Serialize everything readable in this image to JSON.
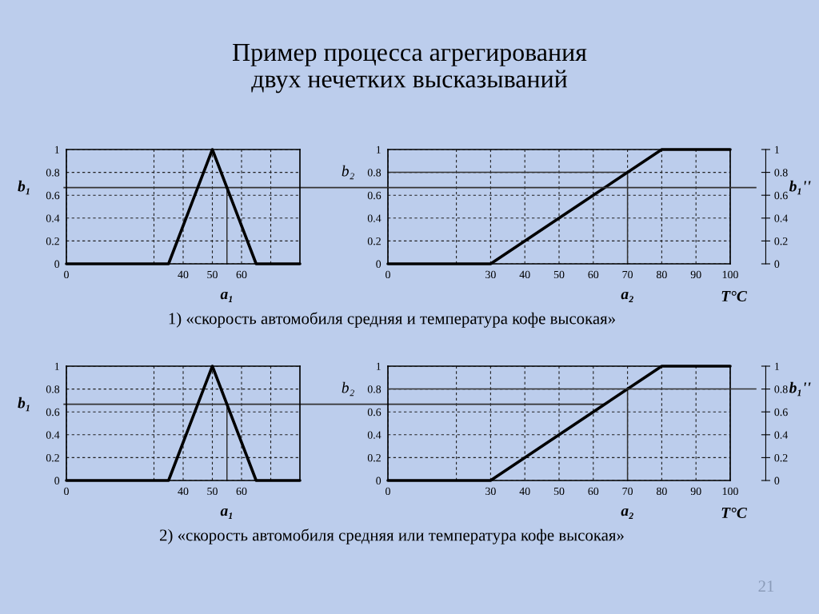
{
  "chart_data": [
    {
      "type": "line",
      "title": "Пример процесса агрегирования\nдвух нечетких высказываний",
      "xlim": [
        0,
        80
      ],
      "ylim": [
        0,
        1
      ],
      "xticks": [
        0,
        {
          "value": 30,
          "label": null
        },
        40,
        50,
        60,
        {
          "value": 70,
          "label": null
        }
      ],
      "yticks": [
        0,
        0.2,
        0.4,
        0.6,
        0.8,
        1
      ],
      "grid": true,
      "series": [
        {
          "color": "#000000",
          "x": [
            0,
            35,
            50,
            65,
            80
          ],
          "values": [
            0,
            0,
            1,
            0,
            0
          ]
        }
      ],
      "ref_lines": [
        {
          "axis": "y",
          "value": 0.667,
          "label": "b₁",
          "color": "#333333"
        },
        {
          "axis": "x",
          "value": 55,
          "label": "a₁",
          "color": "#333333"
        }
      ],
      "annotations": [
        "1) «скорость автомобиля средняя и температура кофе высокая»"
      ]
    },
    {
      "type": "line",
      "xlabel": "T°C",
      "ylabel": "b₂",
      "xlim": [
        0,
        100
      ],
      "ylim": [
        0,
        1
      ],
      "xticks": [
        0,
        {
          "value": 20,
          "label": null
        },
        30,
        40,
        50,
        60,
        70,
        80,
        90,
        100
      ],
      "yticks": [
        0,
        0.2,
        0.4,
        0.6,
        0.8,
        1
      ],
      "y2lim": [
        0,
        1
      ],
      "y2ticks": [
        0,
        0.2,
        0.4,
        0.6,
        0.8,
        1
      ],
      "grid": true,
      "series": [
        {
          "color": "#000000",
          "x": [
            0,
            30,
            80,
            100
          ],
          "values": [
            0,
            0,
            1,
            1
          ]
        },
        {
          "color": "#333333",
          "x": [
            0,
            70
          ],
          "values": [
            0.8,
            0.8
          ]
        }
      ],
      "ref_lines": [
        {
          "axis": "y2",
          "value": 0.667,
          "label": "b₁''",
          "color": "#333333"
        },
        {
          "axis": "x",
          "value": 70,
          "label": "a₂",
          "color": "#333333"
        }
      ]
    },
    {
      "type": "line",
      "xlim": [
        0,
        80
      ],
      "ylim": [
        0,
        1
      ],
      "xticks": [
        0,
        {
          "value": 30,
          "label": null
        },
        40,
        50,
        60,
        {
          "value": 70,
          "label": null
        }
      ],
      "yticks": [
        0,
        0.2,
        0.4,
        0.6,
        0.8,
        1
      ],
      "grid": true,
      "series": [
        {
          "color": "#000000",
          "x": [
            0,
            35,
            50,
            65,
            80
          ],
          "values": [
            0,
            0,
            1,
            0,
            0
          ]
        }
      ],
      "ref_lines": [
        {
          "axis": "y",
          "value": 0.667,
          "label": "b₁",
          "color": "#333333"
        },
        {
          "axis": "x",
          "value": 55,
          "label": "a₁",
          "color": "#333333"
        }
      ],
      "annotations": [
        "2) «скорость автомобиля средняя или температура кофе высокая»"
      ]
    },
    {
      "type": "line",
      "xlabel": "T°C",
      "ylabel": "b₂",
      "xlim": [
        0,
        100
      ],
      "ylim": [
        0,
        1
      ],
      "xticks": [
        0,
        {
          "value": 20,
          "label": null
        },
        30,
        40,
        50,
        60,
        70,
        80,
        90,
        100
      ],
      "yticks": [
        0,
        0.2,
        0.4,
        0.6,
        0.8,
        1
      ],
      "y2lim": [
        0,
        1
      ],
      "y2ticks": [
        0,
        0.2,
        0.4,
        0.6,
        0.8,
        1
      ],
      "grid": true,
      "series": [
        {
          "color": "#000000",
          "x": [
            0,
            30,
            80,
            100
          ],
          "values": [
            0,
            0,
            1,
            1
          ]
        },
        {
          "color": "#333333",
          "x": [
            0,
            63.3
          ],
          "values": [
            0.667,
            0.667
          ]
        }
      ],
      "ref_lines": [
        {
          "axis": "y2",
          "value": 0.8,
          "label": "b₁''",
          "color": "#333333"
        },
        {
          "axis": "x",
          "value": 70,
          "label": "a₂",
          "color": "#333333"
        }
      ],
      "annotations": [
        "21"
      ]
    }
  ]
}
